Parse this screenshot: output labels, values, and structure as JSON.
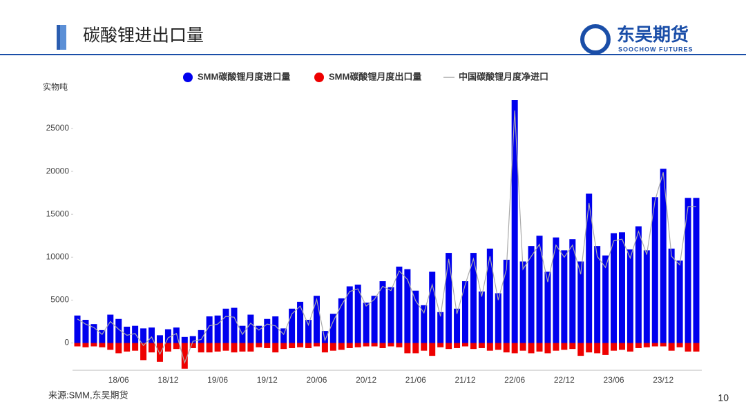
{
  "header": {
    "title": "碳酸锂进出口量",
    "logo": "东吴期货",
    "logo_sub": "SOOCHOW FUTURES"
  },
  "footer": {
    "source": "来源:SMM,东吴期货",
    "page": "10"
  },
  "chart_data": {
    "type": "bar",
    "y_label": "实物吨",
    "categories": [
      null,
      null,
      null,
      null,
      null,
      "18/06",
      null,
      null,
      null,
      null,
      null,
      "18/12",
      null,
      null,
      null,
      null,
      null,
      "19/06",
      null,
      null,
      null,
      null,
      null,
      "19/12",
      null,
      null,
      null,
      null,
      null,
      "20/06",
      null,
      null,
      null,
      null,
      null,
      "20/12",
      null,
      null,
      null,
      null,
      null,
      "21/06",
      null,
      null,
      null,
      null,
      null,
      "21/12",
      null,
      null,
      null,
      null,
      null,
      "22/06",
      null,
      null,
      null,
      null,
      null,
      "22/12",
      null,
      null,
      null,
      null,
      null,
      "23/06",
      null,
      null,
      null,
      null,
      null,
      "23/12",
      null,
      null,
      null,
      null
    ],
    "ylim": [
      -3100,
      28300
    ],
    "yticks": [
      0,
      5000,
      10000,
      15000,
      20000,
      25000
    ],
    "series": [
      {
        "name": "SMM碳酸锂月度进口量",
        "color": "#0000ee",
        "kind": "bar",
        "values": [
          3200,
          2700,
          2200,
          1500,
          3300,
          2800,
          1900,
          2000,
          1700,
          1800,
          900,
          1600,
          1800,
          700,
          800,
          1500,
          3100,
          3200,
          4000,
          4100,
          2000,
          3300,
          2000,
          2800,
          3100,
          1700,
          4000,
          4800,
          2700,
          5500,
          1400,
          3400,
          5200,
          6600,
          6800,
          4700,
          5500,
          7200,
          6500,
          8900,
          8600,
          6100,
          4400,
          8300,
          3600,
          10500,
          4000,
          7200,
          10500,
          6000,
          11000,
          5800,
          9700,
          28300,
          9500,
          11300,
          12500,
          8300,
          12300,
          10800,
          12100,
          9500,
          17400,
          11300,
          10200,
          12800,
          12900,
          10900,
          13600,
          10800,
          17000,
          20300,
          11000,
          9600,
          16900,
          16900
        ]
      },
      {
        "name": "SMM碳酸锂月度出口量",
        "color": "#ee0000",
        "kind": "bar",
        "values": [
          -400,
          -500,
          -400,
          -500,
          -800,
          -1200,
          -1000,
          -900,
          -2000,
          -1100,
          -2200,
          -1000,
          -700,
          -3000,
          -600,
          -1100,
          -1100,
          -1000,
          -900,
          -1100,
          -1000,
          -1000,
          -500,
          -600,
          -1100,
          -700,
          -600,
          -500,
          -600,
          -400,
          -1100,
          -900,
          -800,
          -600,
          -500,
          -400,
          -400,
          -600,
          -400,
          -500,
          -1200,
          -1200,
          -900,
          -1500,
          -500,
          -700,
          -600,
          -400,
          -700,
          -600,
          -900,
          -800,
          -1100,
          -1200,
          -900,
          -1200,
          -1000,
          -1200,
          -900,
          -800,
          -700,
          -1500,
          -1100,
          -1200,
          -1400,
          -900,
          -800,
          -1000,
          -600,
          -500,
          -400,
          -400,
          -900,
          -500,
          -1000,
          -1000
        ]
      },
      {
        "name": "中国碳酸锂月度净进口",
        "color": "#aaaaaa",
        "kind": "line",
        "values": [
          2800,
          2200,
          1800,
          1000,
          2500,
          1600,
          900,
          1100,
          -300,
          700,
          -1300,
          600,
          1100,
          -2300,
          200,
          400,
          2000,
          2200,
          3100,
          3000,
          1000,
          2300,
          1500,
          2200,
          2000,
          1000,
          3400,
          4300,
          2100,
          5100,
          300,
          2500,
          4400,
          6000,
          6300,
          4300,
          5100,
          6600,
          6100,
          8400,
          7400,
          4900,
          3500,
          6800,
          3100,
          9800,
          3400,
          6800,
          9800,
          5400,
          10100,
          5000,
          8600,
          27100,
          8600,
          10100,
          11500,
          7100,
          11400,
          10000,
          11400,
          8000,
          16300,
          10100,
          8800,
          11900,
          12100,
          9900,
          13000,
          10300,
          16600,
          19900,
          10100,
          9100,
          15900,
          15900
        ]
      }
    ]
  }
}
